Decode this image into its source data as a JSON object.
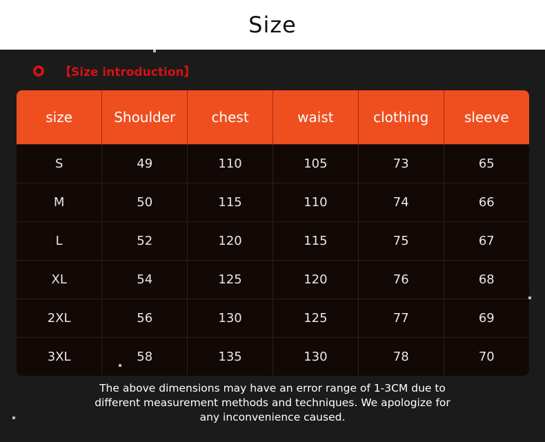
{
  "header": {
    "title": "Size"
  },
  "intro": {
    "label": "【Size introduction】",
    "accent": "#d41217"
  },
  "table": {
    "headers": [
      "size",
      "Shoulder",
      "chest",
      "waist",
      "clothing",
      "sleeve"
    ],
    "rows": [
      [
        "S",
        "49",
        "110",
        "105",
        "73",
        "65"
      ],
      [
        "M",
        "50",
        "115",
        "110",
        "74",
        "66"
      ],
      [
        "L",
        "52",
        "120",
        "115",
        "75",
        "67"
      ],
      [
        "XL",
        "54",
        "125",
        "120",
        "76",
        "68"
      ],
      [
        "2XL",
        "56",
        "130",
        "125",
        "77",
        "69"
      ],
      [
        "3XL",
        "58",
        "135",
        "130",
        "78",
        "70"
      ]
    ],
    "header_color": "#ef4f1f"
  },
  "note": {
    "lines": [
      "The above dimensions may have an error range of 1-3CM due to",
      "different measurement methods and techniques. We apologize for",
      "any inconvenience caused."
    ]
  }
}
